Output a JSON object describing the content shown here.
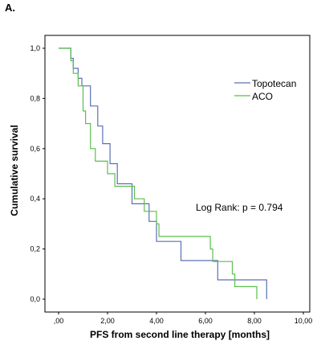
{
  "panel_label": "A.",
  "chart_data": {
    "type": "line",
    "step": true,
    "xlabel": "PFS from second line therapy [months]",
    "ylabel": "Cumulative survival",
    "xlim": [
      0,
      10
    ],
    "ylim": [
      0,
      1
    ],
    "x_ticks": [
      0,
      2,
      4,
      6,
      8,
      10
    ],
    "x_tick_labels": [
      ",00",
      "2,00",
      "4,00",
      "6,00",
      "8,00",
      "10,00"
    ],
    "y_ticks": [
      0,
      0.2,
      0.4,
      0.6,
      0.8,
      1.0
    ],
    "y_tick_labels": [
      "0,0",
      "0,2",
      "0,4",
      "0,6",
      "0,8",
      "1,0"
    ],
    "legend_position": "top-right",
    "annotation": "Log Rank: p = 0.794",
    "series": [
      {
        "name": "Topotecan",
        "color": "#5b6fb5",
        "points": [
          [
            0,
            1.0
          ],
          [
            0.5,
            1.0
          ],
          [
            0.5,
            0.96
          ],
          [
            0.6,
            0.96
          ],
          [
            0.6,
            0.92
          ],
          [
            0.8,
            0.92
          ],
          [
            0.8,
            0.88
          ],
          [
            0.95,
            0.88
          ],
          [
            0.95,
            0.85
          ],
          [
            1.3,
            0.85
          ],
          [
            1.3,
            0.77
          ],
          [
            1.6,
            0.77
          ],
          [
            1.6,
            0.69
          ],
          [
            1.8,
            0.69
          ],
          [
            1.8,
            0.62
          ],
          [
            2.1,
            0.62
          ],
          [
            2.1,
            0.54
          ],
          [
            2.4,
            0.54
          ],
          [
            2.4,
            0.46
          ],
          [
            3.0,
            0.46
          ],
          [
            3.0,
            0.38
          ],
          [
            3.7,
            0.38
          ],
          [
            3.7,
            0.31
          ],
          [
            4.0,
            0.31
          ],
          [
            4.0,
            0.23
          ],
          [
            5.0,
            0.23
          ],
          [
            5.0,
            0.154
          ],
          [
            6.5,
            0.154
          ],
          [
            6.5,
            0.077
          ],
          [
            8.5,
            0.077
          ],
          [
            8.5,
            0.0
          ]
        ]
      },
      {
        "name": "ACO",
        "color": "#5bbf4f",
        "points": [
          [
            0,
            1.0
          ],
          [
            0.5,
            1.0
          ],
          [
            0.5,
            0.95
          ],
          [
            0.6,
            0.95
          ],
          [
            0.6,
            0.9
          ],
          [
            0.8,
            0.9
          ],
          [
            0.8,
            0.85
          ],
          [
            1.0,
            0.85
          ],
          [
            1.0,
            0.75
          ],
          [
            1.1,
            0.75
          ],
          [
            1.1,
            0.7
          ],
          [
            1.3,
            0.7
          ],
          [
            1.3,
            0.6
          ],
          [
            1.5,
            0.6
          ],
          [
            1.5,
            0.55
          ],
          [
            2.0,
            0.55
          ],
          [
            2.0,
            0.5
          ],
          [
            2.3,
            0.5
          ],
          [
            2.3,
            0.45
          ],
          [
            3.1,
            0.45
          ],
          [
            3.1,
            0.4
          ],
          [
            3.5,
            0.4
          ],
          [
            3.5,
            0.35
          ],
          [
            4.0,
            0.35
          ],
          [
            4.0,
            0.3
          ],
          [
            4.1,
            0.3
          ],
          [
            4.1,
            0.25
          ],
          [
            6.2,
            0.25
          ],
          [
            6.2,
            0.2
          ],
          [
            6.3,
            0.2
          ],
          [
            6.3,
            0.15
          ],
          [
            7.1,
            0.15
          ],
          [
            7.1,
            0.1
          ],
          [
            7.2,
            0.1
          ],
          [
            7.2,
            0.05
          ],
          [
            8.1,
            0.05
          ],
          [
            8.1,
            0.0
          ]
        ]
      }
    ]
  }
}
